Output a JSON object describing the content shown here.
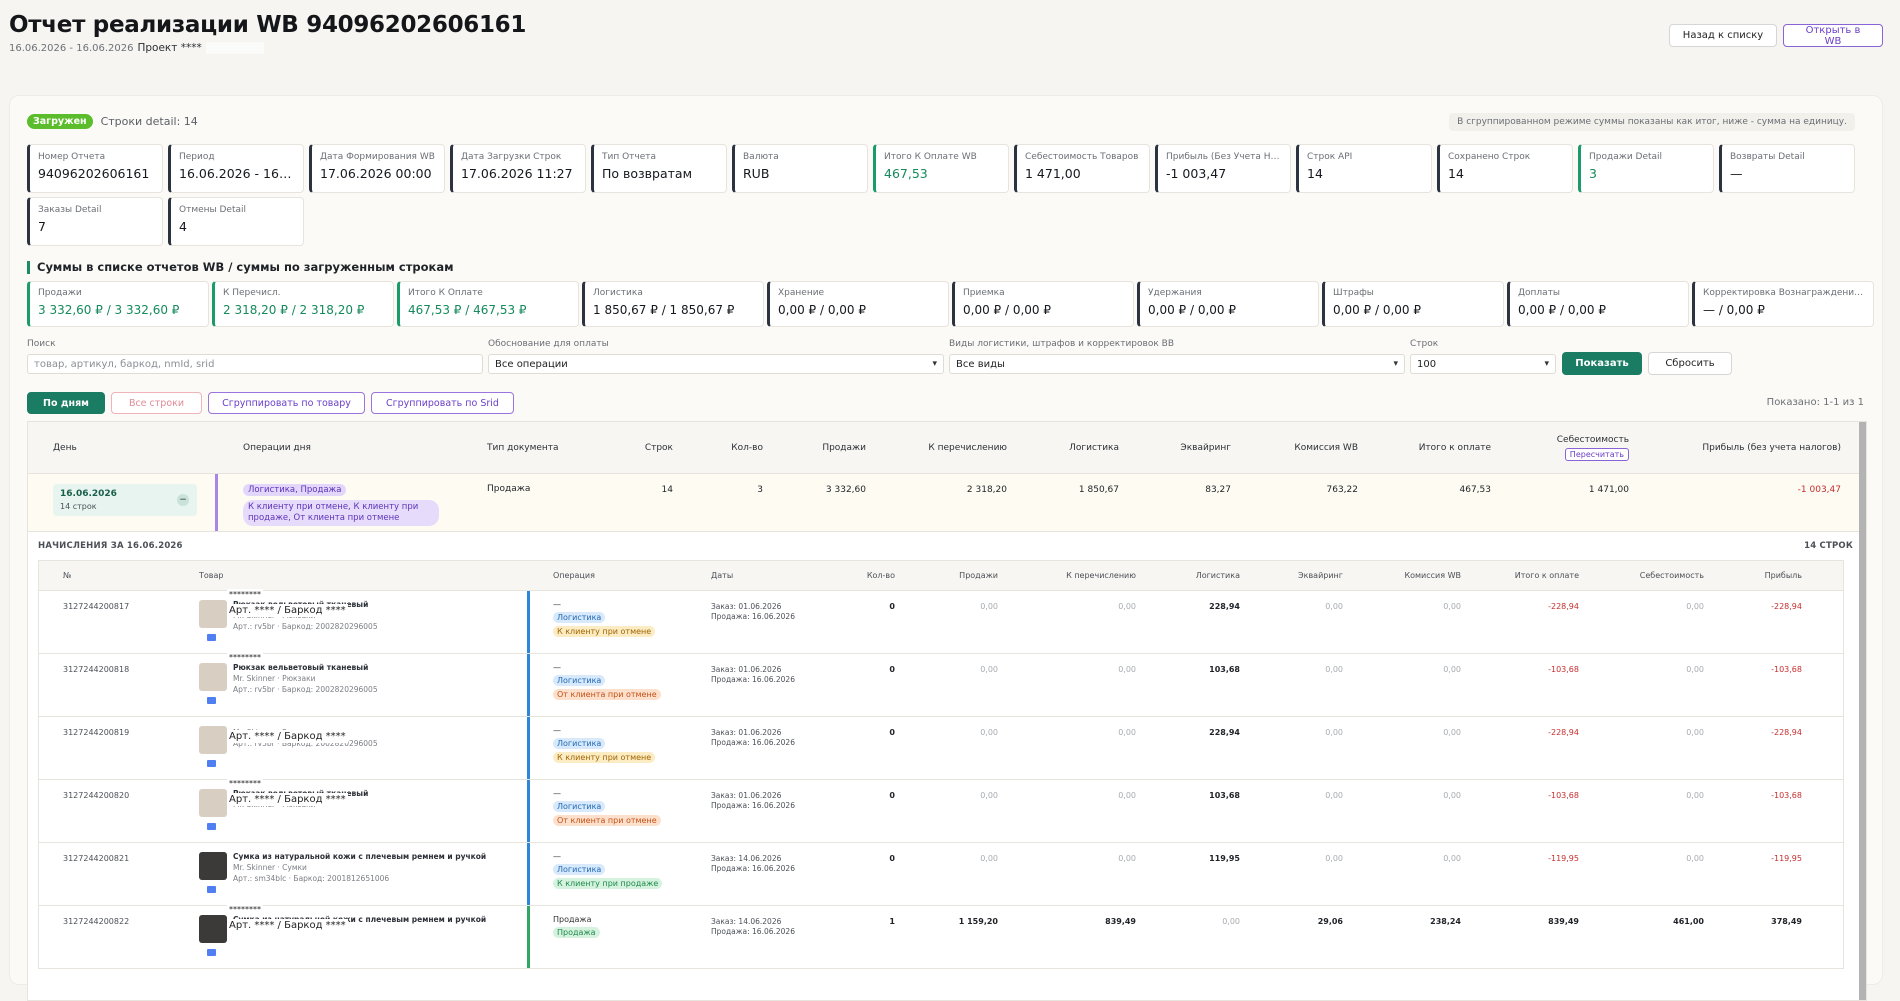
{
  "page": {
    "title": "Отчет реализации WB 94096202606161",
    "subtitle_dates": "16.06.2026 - 16.06.2026",
    "project_label": "Проект ****"
  },
  "actions": {
    "back_label": "Назад к списку",
    "open_wb_label": "Открыть в WB"
  },
  "status": {
    "badge": "Загружен",
    "detail_rows": "Строки detail: 14",
    "hint": "В сгруппированном режиме суммы показаны как итог, ниже - сумма на единицу."
  },
  "cards": [
    {
      "label": "Номер Отчета",
      "value": "94096202606161"
    },
    {
      "label": "Период",
      "value": "16.06.2026 - 16.0..."
    },
    {
      "label": "Дата Формирования WB",
      "value": "17.06.2026 00:00"
    },
    {
      "label": "Дата Загрузки Строк",
      "value": "17.06.2026 11:27"
    },
    {
      "label": "Тип Отчета",
      "value": "По возвратам"
    },
    {
      "label": "Валюта",
      "value": "RUB"
    },
    {
      "label": "Итого К Оплате WB",
      "value": "467,53",
      "green": true
    },
    {
      "label": "Себестоимость Товаров",
      "value": "1 471,00"
    },
    {
      "label": "Прибыль (Без Учета Налогов)",
      "value": "-1 003,47"
    },
    {
      "label": "Строк API",
      "value": "14"
    },
    {
      "label": "Сохранено Строк",
      "value": "14"
    },
    {
      "label": "Продажи Detail",
      "value": "3",
      "green": true
    },
    {
      "label": "Возвраты Detail",
      "value": "—"
    },
    {
      "label": "Заказы Detail",
      "value": "7"
    },
    {
      "label": "Отмены Detail",
      "value": "4"
    }
  ],
  "sums": {
    "title": "Суммы в списке отчетов WB / суммы по загруженным строкам",
    "items": [
      {
        "label": "Продажи",
        "value": "3 332,60 ₽ / 3 332,60 ₽",
        "green": true
      },
      {
        "label": "К Перечисл.",
        "value": "2 318,20 ₽ / 2 318,20 ₽",
        "green": true
      },
      {
        "label": "Итого К Оплате",
        "value": "467,53 ₽ / 467,53 ₽",
        "green": true
      },
      {
        "label": "Логистика",
        "value": "1 850,67 ₽ / 1 850,67 ₽"
      },
      {
        "label": "Хранение",
        "value": "0,00 ₽ / 0,00 ₽"
      },
      {
        "label": "Приемка",
        "value": "0,00 ₽ / 0,00 ₽"
      },
      {
        "label": "Удержания",
        "value": "0,00 ₽ / 0,00 ₽"
      },
      {
        "label": "Штрафы",
        "value": "0,00 ₽ / 0,00 ₽"
      },
      {
        "label": "Доплаты",
        "value": "0,00 ₽ / 0,00 ₽"
      },
      {
        "label": "Корректировка Вознаграждения ВБ",
        "value": "— / 0,00 ₽"
      }
    ]
  },
  "filters": {
    "search_label": "Поиск",
    "search_placeholder": "товар, артикул, баркод, nmId, srid",
    "payment_label": "Обоснование для оплаты",
    "payment_value": "Все операции",
    "types_label": "Виды логистики, штрафов и корректировок ВВ",
    "types_value": "Все виды",
    "rows_label": "Строк",
    "rows_value": "100",
    "show_label": "Показать",
    "reset_label": "Сбросить"
  },
  "modes": {
    "by_days": "По дням",
    "all_rows": "Все строки",
    "group_product": "Сгруппировать по товару",
    "group_srid": "Сгруппировать по Srid",
    "shown": "Показано: 1-1 из 1"
  },
  "table": {
    "headers": {
      "day": "День",
      "ops": "Операции дня",
      "doc_type": "Тип документа",
      "rows": "Строк",
      "qty": "Кол-во",
      "sales": "Продажи",
      "transfer": "К перечислению",
      "logistics": "Логистика",
      "acquiring": "Эквайринг",
      "commission": "Комиссия WB",
      "total": "Итого к оплате",
      "cost": "Себестоимость",
      "recalc": "Пересчитать",
      "profit": "Прибыль (без учета налогов)"
    },
    "day_row": {
      "date": "16.06.2026",
      "rows_count": "14 строк",
      "collapse": "−",
      "ops_tag": "Логистика, Продажа",
      "ops_detail": "К клиенту при отмене, К клиенту при продаже, От клиента при отмене",
      "doc_type": "Продажа",
      "rows": "14",
      "qty": "3",
      "sales": "3 332,60",
      "transfer": "2 318,20",
      "logistics": "1 850,67",
      "acquiring": "83,27",
      "commission": "763,22",
      "total": "467,53",
      "cost": "1 471,00",
      "profit": "-1 003,47"
    }
  },
  "sub": {
    "title": "НАЧИСЛЕНИЯ ЗА 16.06.2026",
    "count": "14 СТРОК",
    "headers": {
      "no": "№",
      "product": "Товар",
      "operation": "Операция",
      "dates": "Даты",
      "qty": "Кол-во",
      "sales": "Продажи",
      "transfer": "К перечислению",
      "logistics": "Логистика",
      "acquiring": "Эквайринг",
      "commission": "Комиссия WB",
      "total": "Итого к оплате",
      "cost": "Себестоимость",
      "profit": "Прибыль"
    },
    "rows": [
      {
        "id": "3127244200817",
        "name": "Рюкзак вельветовый тканевый",
        "brand": "Mr. Skinner · Рюкзаки",
        "art": "Арт.: rv5br · Баркод: 2002820296005",
        "mask_top": "********",
        "mask_art": "Арт. **** / Баркод ****",
        "op": "—",
        "tag": "Логистика",
        "tag2": "К клиенту при отмене",
        "tag2_kind": "yellow",
        "order_date": "Заказ: 01.06.2026",
        "sale_date": "Продажа: 16.06.2026",
        "qty": "0",
        "sales": "0,00",
        "transfer": "0,00",
        "logistics": "228,94",
        "acquiring": "0,00",
        "commission": "0,00",
        "total": "-228,94",
        "cost": "0,00",
        "profit": "-228,94"
      },
      {
        "id": "3127244200818",
        "name": "Рюкзак вельветовый тканевый",
        "brand": "Mr. Skinner · Рюкзаки",
        "art": "Арт.: rv5br · Баркод: 2002820296005",
        "mask_top": "********",
        "mask_art": "",
        "op": "—",
        "tag": "Логистика",
        "tag2": "От клиента при отмене",
        "tag2_kind": "orange",
        "order_date": "Заказ: 01.06.2026",
        "sale_date": "Продажа: 16.06.2026",
        "qty": "0",
        "sales": "0,00",
        "transfer": "0,00",
        "logistics": "103,68",
        "acquiring": "0,00",
        "commission": "0,00",
        "total": "-103,68",
        "cost": "0,00",
        "profit": "-103,68"
      },
      {
        "id": "3127244200819",
        "name": "",
        "brand": "Mr. Skinner · Рюкзаки",
        "art": "Арт.: rv5br · Баркод: 2002820296005",
        "mask_top": "",
        "mask_art": "Арт. **** / Баркод ****",
        "op": "—",
        "tag": "Логистика",
        "tag2": "К клиенту при отмене",
        "tag2_kind": "yellow",
        "order_date": "Заказ: 01.06.2026",
        "sale_date": "Продажа: 16.06.2026",
        "qty": "0",
        "sales": "0,00",
        "transfer": "0,00",
        "logistics": "228,94",
        "acquiring": "0,00",
        "commission": "0,00",
        "total": "-228,94",
        "cost": "0,00",
        "profit": "-228,94"
      },
      {
        "id": "3127244200820",
        "name": "Рюкзак вельветовый тканевый",
        "brand": "Mr. Skinner · Рюкзаки",
        "art": "",
        "mask_top": "********",
        "mask_art": "Арт. **** / Баркод ****",
        "op": "—",
        "tag": "Логистика",
        "tag2": "От клиента при отмене",
        "tag2_kind": "orange",
        "order_date": "Заказ: 01.06.2026",
        "sale_date": "Продажа: 16.06.2026",
        "qty": "0",
        "sales": "0,00",
        "transfer": "0,00",
        "logistics": "103,68",
        "acquiring": "0,00",
        "commission": "0,00",
        "total": "-103,68",
        "cost": "0,00",
        "profit": "-103,68"
      },
      {
        "id": "3127244200821",
        "name": "Сумка из натуральной кожи с плечевым ремнем и ручкой",
        "brand": "Mr. Skinner · Сумки",
        "art": "Арт.: sm34blc · Баркод: 2001812651006",
        "mask_top": "",
        "mask_art": "",
        "op": "—",
        "tag": "Логистика",
        "tag2": "К клиенту при продаже",
        "tag2_kind": "green",
        "order_date": "Заказ: 14.06.2026",
        "sale_date": "Продажа: 16.06.2026",
        "qty": "0",
        "sales": "0,00",
        "transfer": "0,00",
        "logistics": "119,95",
        "acquiring": "0,00",
        "commission": "0,00",
        "total": "-119,95",
        "cost": "0,00",
        "profit": "-119,95"
      },
      {
        "id": "3127244200822",
        "name": "Сумка из натуральной кожи с плечевым ремнем и ручкой",
        "brand": "",
        "art": "",
        "mask_top": "********",
        "mask_art": "Арт. **** / Баркод ****",
        "op": "Продажа",
        "tag": "",
        "tag2": "Продажа",
        "tag2_kind": "green",
        "order_date": "Заказ: 14.06.2026",
        "sale_date": "Продажа: 16.06.2026",
        "qty": "1",
        "sales": "1 159,20",
        "transfer": "839,49",
        "logistics": "0,00",
        "acquiring": "29,06",
        "commission": "238,24",
        "total": "839,49",
        "cost": "461,00",
        "profit": "378,49"
      }
    ]
  }
}
